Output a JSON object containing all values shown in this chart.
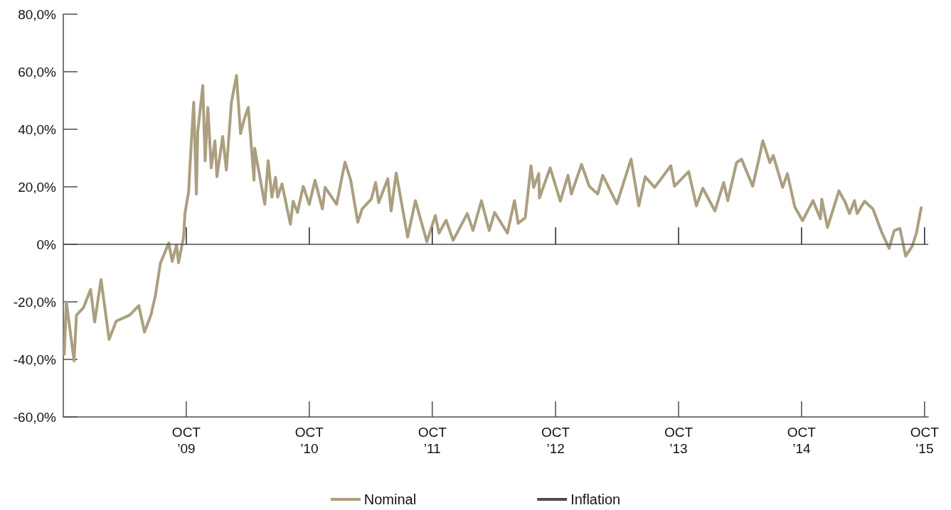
{
  "chart_data": {
    "type": "line",
    "xlim": [
      "2008-10-01",
      "2015-10-12"
    ],
    "xticks": [
      {
        "value": "2009-10-01",
        "label": "OCT\n’09"
      },
      {
        "value": "2010-10-01",
        "label": "OCT\n’10"
      },
      {
        "value": "2011-10-01",
        "label": "OCT\n’11"
      },
      {
        "value": "2012-10-01",
        "label": "OCT\n’12"
      },
      {
        "value": "2013-10-01",
        "label": "OCT\n’13"
      },
      {
        "value": "2014-10-01",
        "label": "OCT\n’14"
      },
      {
        "value": "2015-10-01",
        "label": "OCT\n’15"
      }
    ],
    "ylim": [
      -60,
      80
    ],
    "yticks": [
      {
        "value": -60,
        "label": "-60,0%"
      },
      {
        "value": -40,
        "label": "-40,0%"
      },
      {
        "value": -20,
        "label": "-20,0%"
      },
      {
        "value": 0,
        "label": "0%"
      },
      {
        "value": 20,
        "label": "20,0%"
      },
      {
        "value": 40,
        "label": "40,0%"
      },
      {
        "value": 60,
        "label": "60,0%"
      },
      {
        "value": 80,
        "label": "80,0%"
      }
    ],
    "ref_lines": [
      {
        "axis": "y",
        "value": 0,
        "color": "#4d4d4f"
      }
    ],
    "grid": false,
    "legend": "bottom",
    "marker": "none",
    "line_style": "solid",
    "series": [
      {
        "name": "Nominal",
        "color": "#ab9f80",
        "x": [
          "2008-10-04",
          "2008-10-10",
          "2008-11-02",
          "2008-11-09",
          "2008-11-30",
          "2008-12-21",
          "2009-01-02",
          "2009-01-21",
          "2009-02-14",
          "2009-03-07",
          "2009-04-16",
          "2009-05-13",
          "2009-05-30",
          "2009-06-18",
          "2009-07-01",
          "2009-07-16",
          "2009-08-10",
          "2009-08-20",
          "2009-09-02",
          "2009-09-08",
          "2009-09-23",
          "2009-09-27",
          "2009-10-08",
          "2009-10-12",
          "2009-10-23",
          "2009-10-31",
          "2009-11-04",
          "2009-11-19",
          "2009-11-26",
          "2009-12-04",
          "2009-12-14",
          "2009-12-25",
          "2009-12-31",
          "2010-01-17",
          "2010-01-28",
          "2010-02-12",
          "2010-02-27",
          "2010-03-11",
          "2010-03-22",
          "2010-04-03",
          "2010-04-20",
          "2010-04-22",
          "2010-05-22",
          "2010-06-01",
          "2010-06-12",
          "2010-06-23",
          "2010-06-29",
          "2010-07-12",
          "2010-08-06",
          "2010-08-14",
          "2010-08-27",
          "2010-09-13",
          "2010-10-01",
          "2010-10-18",
          "2010-11-09",
          "2010-11-17",
          "2010-12-21",
          "2011-01-15",
          "2011-02-01",
          "2011-02-22",
          "2011-03-07",
          "2011-04-03",
          "2011-04-16",
          "2011-04-25",
          "2011-05-22",
          "2011-06-01",
          "2011-06-16",
          "2011-07-20",
          "2011-08-12",
          "2011-09-15",
          "2011-10-10",
          "2011-10-21",
          "2011-11-11",
          "2011-12-02",
          "2012-01-13",
          "2012-01-30",
          "2012-02-24",
          "2012-03-18",
          "2012-04-03",
          "2012-05-11",
          "2012-06-01",
          "2012-06-12",
          "2012-07-03",
          "2012-07-20",
          "2012-07-28",
          "2012-08-12",
          "2012-08-14",
          "2012-09-15",
          "2012-10-15",
          "2012-11-07",
          "2012-11-17",
          "2012-12-17",
          "2013-01-09",
          "2013-02-03",
          "2013-02-18",
          "2013-04-01",
          "2013-05-13",
          "2013-06-05",
          "2013-06-24",
          "2013-07-22",
          "2013-09-08",
          "2013-09-19",
          "2013-10-31",
          "2013-11-23",
          "2013-12-12",
          "2014-01-17",
          "2014-02-12",
          "2014-02-24",
          "2014-03-22",
          "2014-04-06",
          "2014-05-09",
          "2014-05-28",
          "2014-06-08",
          "2014-06-29",
          "2014-07-09",
          "2014-08-06",
          "2014-08-20",
          "2014-09-11",
          "2014-10-04",
          "2014-11-04",
          "2014-11-26",
          "2014-11-30",
          "2014-12-17",
          "2015-01-20",
          "2015-02-08",
          "2015-02-20",
          "2015-03-07",
          "2015-03-15",
          "2015-04-06",
          "2015-05-01",
          "2015-05-28",
          "2015-06-18",
          "2015-07-03",
          "2015-07-20",
          "2015-08-06",
          "2015-08-25",
          "2015-09-07",
          "2015-09-21"
        ],
        "values": [
          -38.2,
          -20,
          -40.5,
          -24.6,
          -22,
          -15.7,
          -27,
          -12.3,
          -33,
          -26.7,
          -24.6,
          -21.3,
          -30.5,
          -24.6,
          -18,
          -6.6,
          0.5,
          -5.9,
          -0.2,
          -6.4,
          2.5,
          10.7,
          18.4,
          27.3,
          49.4,
          17.5,
          39.2,
          55.2,
          29,
          47.6,
          26.6,
          36,
          23.5,
          37.5,
          25.8,
          49.4,
          58.7,
          38.5,
          43.5,
          47.6,
          22.3,
          33.4,
          13.9,
          29.1,
          16.4,
          23.3,
          16.4,
          21,
          7,
          15,
          11.1,
          20.2,
          13.9,
          22.3,
          12.3,
          19.8,
          13.9,
          28.6,
          22.3,
          7.7,
          12.3,
          15.7,
          21.5,
          14.5,
          22.8,
          11.6,
          24.8,
          2.5,
          15.2,
          0.9,
          10,
          3.9,
          8.4,
          1.4,
          10.7,
          4.8,
          15.2,
          4.8,
          11.1,
          3.9,
          15.2,
          7.3,
          9.3,
          27.3,
          19.8,
          24.6,
          16.1,
          26.6,
          15,
          24,
          17.5,
          27.8,
          20.2,
          17.5,
          24,
          14.1,
          29.6,
          13.4,
          23.5,
          19.8,
          27.3,
          20.2,
          25.3,
          13.4,
          19.5,
          11.6,
          21.5,
          15.2,
          28.4,
          29.6,
          20.2,
          29.9,
          36,
          28.4,
          30.9,
          19.8,
          24.6,
          13,
          8.2,
          15.2,
          8.9,
          15.7,
          5.9,
          18.6,
          14.5,
          10.7,
          15.2,
          10.7,
          15,
          12.3,
          3.9,
          -1.4,
          4.8,
          5.5,
          -4.1,
          -0.7,
          3.9,
          12.7
        ]
      },
      {
        "name": "Inflation",
        "color": "#4d4d4f"
      }
    ]
  }
}
